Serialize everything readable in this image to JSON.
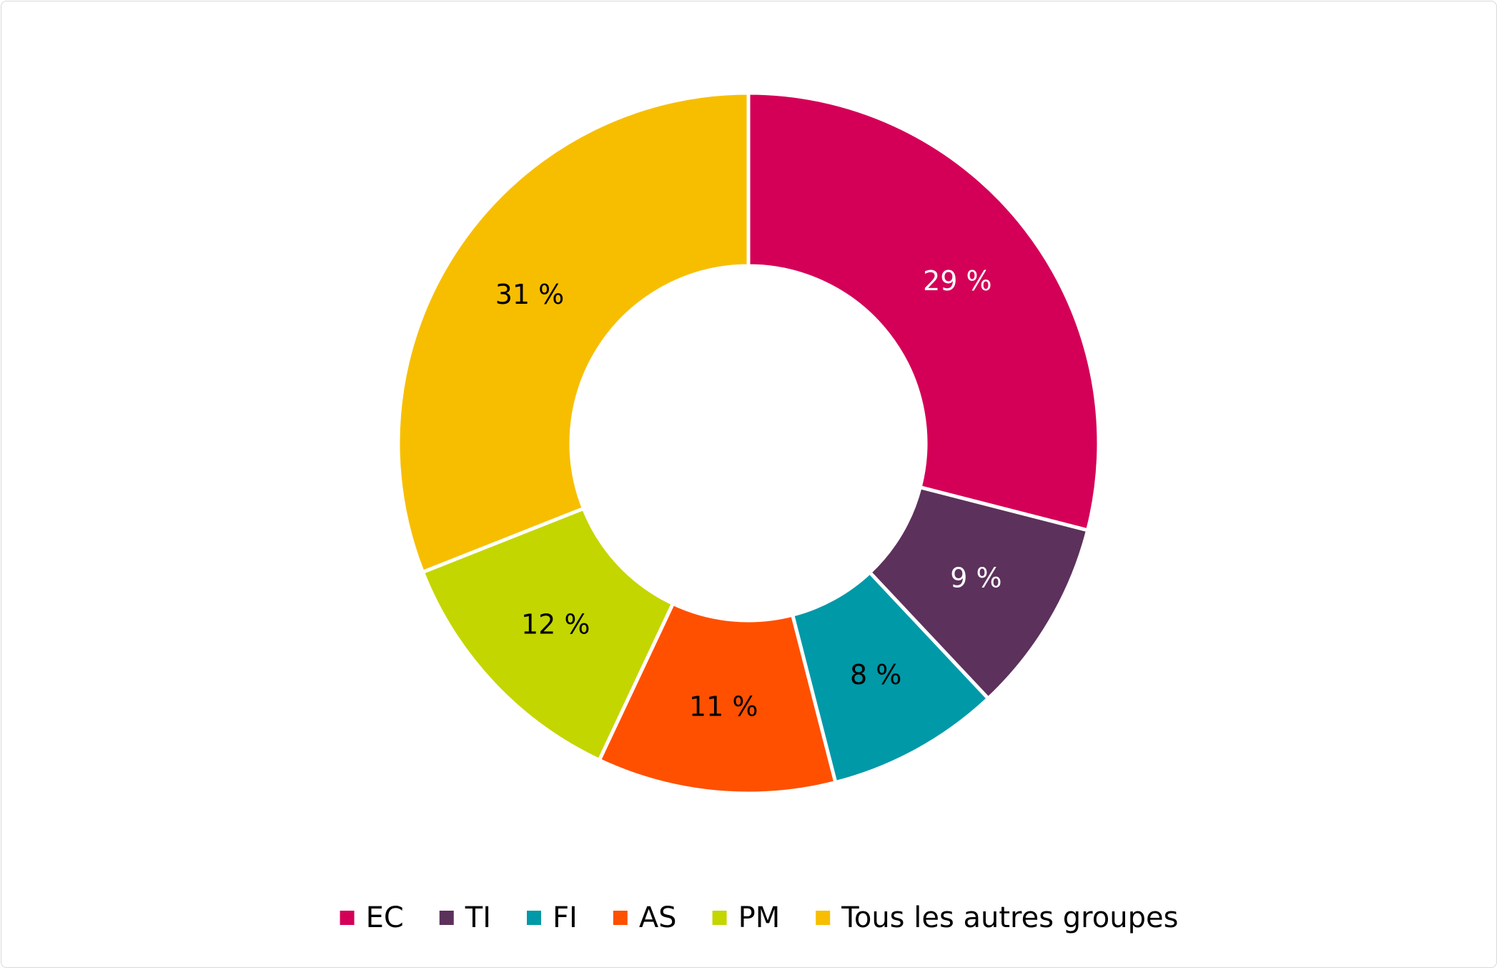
{
  "chart_data": {
    "type": "pie",
    "donut": true,
    "title": "",
    "legend_position": "bottom",
    "categories": [
      "EC",
      "TI",
      "FI",
      "AS",
      "PM",
      "Tous les autres groupes"
    ],
    "values": [
      29,
      9,
      8,
      11,
      12,
      31
    ],
    "data_labels": [
      "29 %",
      "9 %",
      "8 %",
      "11 %",
      "12 %",
      "31 %"
    ],
    "colors": [
      "#d40057",
      "#5c315c",
      "#0099a8",
      "#ff5000",
      "#c4d600",
      "#f7be00"
    ],
    "label_colors": [
      "#ffffff",
      "#ffffff",
      "#000000",
      "#000000",
      "#000000",
      "#000000"
    ]
  }
}
